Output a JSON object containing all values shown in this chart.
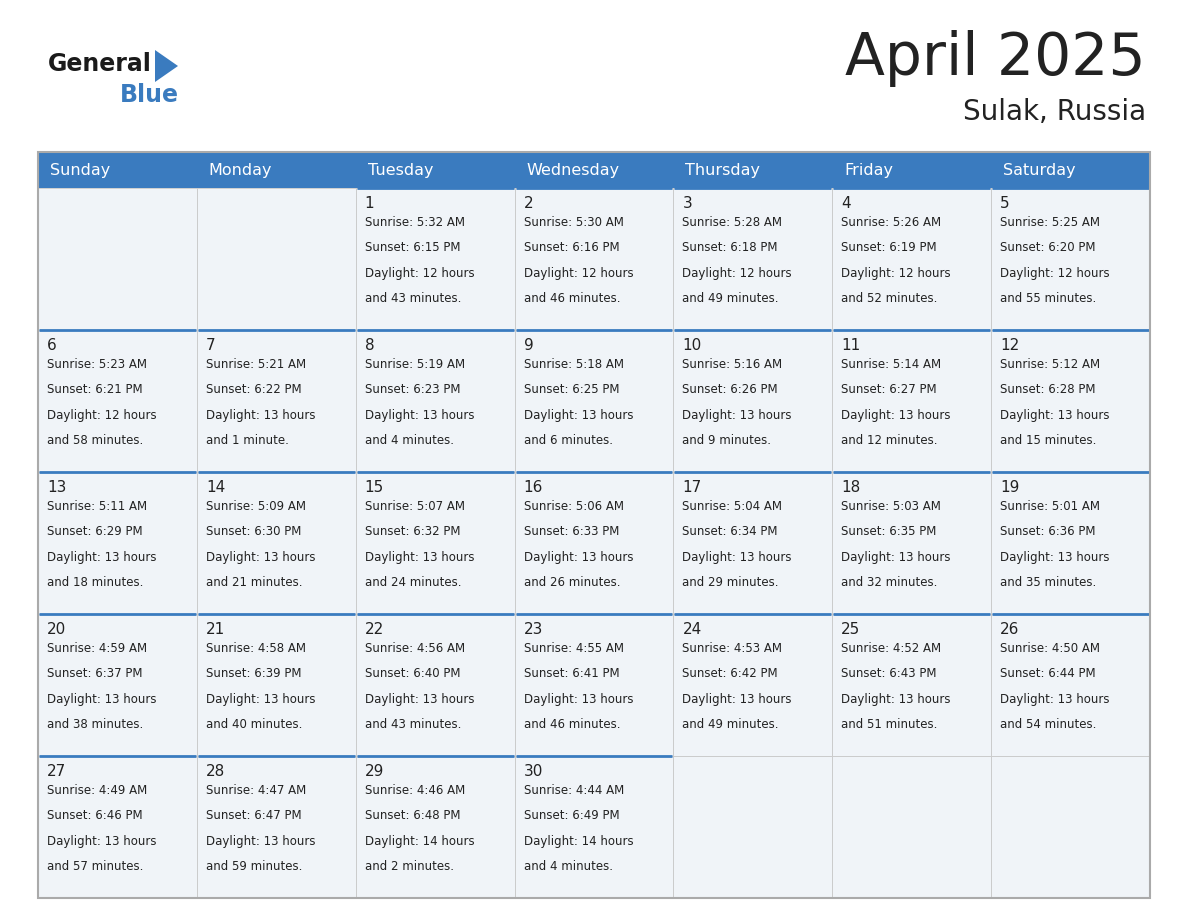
{
  "title": "April 2025",
  "subtitle": "Sulak, Russia",
  "header_bg": "#3a7bbf",
  "header_fg": "#ffffff",
  "cell_bg": "#f0f4f8",
  "row_border_color": "#3a7bbf",
  "cell_border_color": "#c8c8c8",
  "text_color": "#222222",
  "logo_dark": "#1a1a1a",
  "logo_blue": "#3a7bbf",
  "days_of_week": [
    "Sunday",
    "Monday",
    "Tuesday",
    "Wednesday",
    "Thursday",
    "Friday",
    "Saturday"
  ],
  "weeks": [
    [
      {
        "day": "",
        "info": ""
      },
      {
        "day": "",
        "info": ""
      },
      {
        "day": "1",
        "info": "Sunrise: 5:32 AM\nSunset: 6:15 PM\nDaylight: 12 hours\nand 43 minutes."
      },
      {
        "day": "2",
        "info": "Sunrise: 5:30 AM\nSunset: 6:16 PM\nDaylight: 12 hours\nand 46 minutes."
      },
      {
        "day": "3",
        "info": "Sunrise: 5:28 AM\nSunset: 6:18 PM\nDaylight: 12 hours\nand 49 minutes."
      },
      {
        "day": "4",
        "info": "Sunrise: 5:26 AM\nSunset: 6:19 PM\nDaylight: 12 hours\nand 52 minutes."
      },
      {
        "day": "5",
        "info": "Sunrise: 5:25 AM\nSunset: 6:20 PM\nDaylight: 12 hours\nand 55 minutes."
      }
    ],
    [
      {
        "day": "6",
        "info": "Sunrise: 5:23 AM\nSunset: 6:21 PM\nDaylight: 12 hours\nand 58 minutes."
      },
      {
        "day": "7",
        "info": "Sunrise: 5:21 AM\nSunset: 6:22 PM\nDaylight: 13 hours\nand 1 minute."
      },
      {
        "day": "8",
        "info": "Sunrise: 5:19 AM\nSunset: 6:23 PM\nDaylight: 13 hours\nand 4 minutes."
      },
      {
        "day": "9",
        "info": "Sunrise: 5:18 AM\nSunset: 6:25 PM\nDaylight: 13 hours\nand 6 minutes."
      },
      {
        "day": "10",
        "info": "Sunrise: 5:16 AM\nSunset: 6:26 PM\nDaylight: 13 hours\nand 9 minutes."
      },
      {
        "day": "11",
        "info": "Sunrise: 5:14 AM\nSunset: 6:27 PM\nDaylight: 13 hours\nand 12 minutes."
      },
      {
        "day": "12",
        "info": "Sunrise: 5:12 AM\nSunset: 6:28 PM\nDaylight: 13 hours\nand 15 minutes."
      }
    ],
    [
      {
        "day": "13",
        "info": "Sunrise: 5:11 AM\nSunset: 6:29 PM\nDaylight: 13 hours\nand 18 minutes."
      },
      {
        "day": "14",
        "info": "Sunrise: 5:09 AM\nSunset: 6:30 PM\nDaylight: 13 hours\nand 21 minutes."
      },
      {
        "day": "15",
        "info": "Sunrise: 5:07 AM\nSunset: 6:32 PM\nDaylight: 13 hours\nand 24 minutes."
      },
      {
        "day": "16",
        "info": "Sunrise: 5:06 AM\nSunset: 6:33 PM\nDaylight: 13 hours\nand 26 minutes."
      },
      {
        "day": "17",
        "info": "Sunrise: 5:04 AM\nSunset: 6:34 PM\nDaylight: 13 hours\nand 29 minutes."
      },
      {
        "day": "18",
        "info": "Sunrise: 5:03 AM\nSunset: 6:35 PM\nDaylight: 13 hours\nand 32 minutes."
      },
      {
        "day": "19",
        "info": "Sunrise: 5:01 AM\nSunset: 6:36 PM\nDaylight: 13 hours\nand 35 minutes."
      }
    ],
    [
      {
        "day": "20",
        "info": "Sunrise: 4:59 AM\nSunset: 6:37 PM\nDaylight: 13 hours\nand 38 minutes."
      },
      {
        "day": "21",
        "info": "Sunrise: 4:58 AM\nSunset: 6:39 PM\nDaylight: 13 hours\nand 40 minutes."
      },
      {
        "day": "22",
        "info": "Sunrise: 4:56 AM\nSunset: 6:40 PM\nDaylight: 13 hours\nand 43 minutes."
      },
      {
        "day": "23",
        "info": "Sunrise: 4:55 AM\nSunset: 6:41 PM\nDaylight: 13 hours\nand 46 minutes."
      },
      {
        "day": "24",
        "info": "Sunrise: 4:53 AM\nSunset: 6:42 PM\nDaylight: 13 hours\nand 49 minutes."
      },
      {
        "day": "25",
        "info": "Sunrise: 4:52 AM\nSunset: 6:43 PM\nDaylight: 13 hours\nand 51 minutes."
      },
      {
        "day": "26",
        "info": "Sunrise: 4:50 AM\nSunset: 6:44 PM\nDaylight: 13 hours\nand 54 minutes."
      }
    ],
    [
      {
        "day": "27",
        "info": "Sunrise: 4:49 AM\nSunset: 6:46 PM\nDaylight: 13 hours\nand 57 minutes."
      },
      {
        "day": "28",
        "info": "Sunrise: 4:47 AM\nSunset: 6:47 PM\nDaylight: 13 hours\nand 59 minutes."
      },
      {
        "day": "29",
        "info": "Sunrise: 4:46 AM\nSunset: 6:48 PM\nDaylight: 14 hours\nand 2 minutes."
      },
      {
        "day": "30",
        "info": "Sunrise: 4:44 AM\nSunset: 6:49 PM\nDaylight: 14 hours\nand 4 minutes."
      },
      {
        "day": "",
        "info": ""
      },
      {
        "day": "",
        "info": ""
      },
      {
        "day": "",
        "info": ""
      }
    ]
  ]
}
